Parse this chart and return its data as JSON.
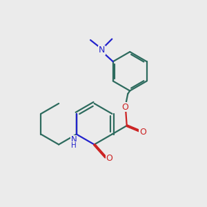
{
  "bg_color": "#ebebeb",
  "bond_color": "#2d6b5e",
  "nitrogen_color": "#2222cc",
  "oxygen_color": "#cc2222",
  "line_width": 1.6,
  "fig_size": [
    3.0,
    3.0
  ],
  "dpi": 100,
  "xlim": [
    0,
    10
  ],
  "ylim": [
    0,
    10
  ]
}
